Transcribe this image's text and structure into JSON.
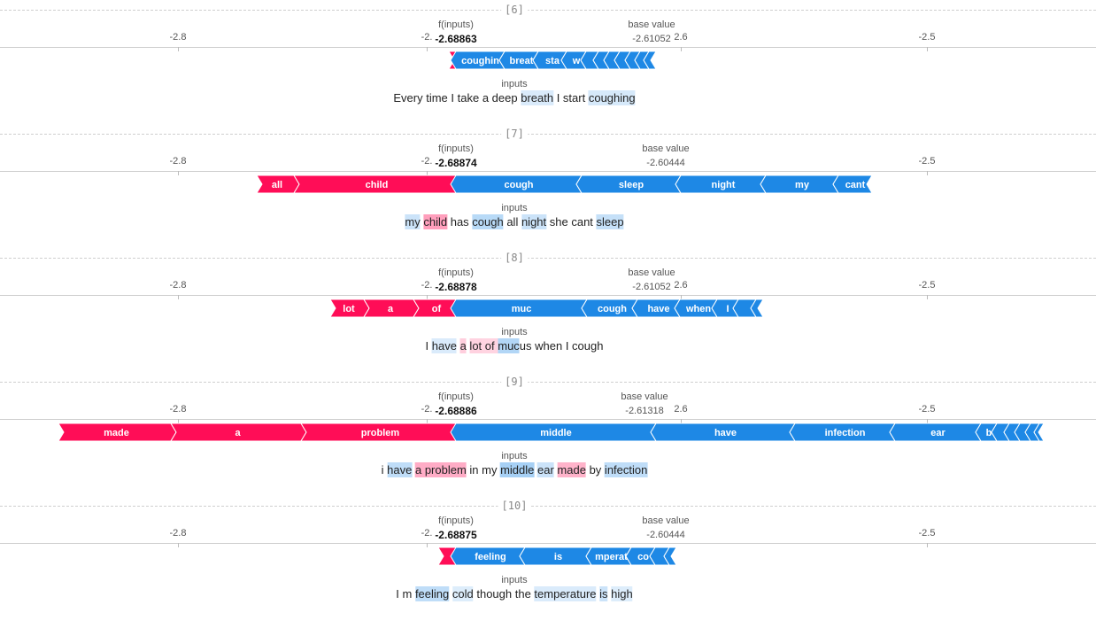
{
  "colors": {
    "positive": "#ff0d57",
    "negative": "#1e88e5",
    "axis": "#cccccc"
  },
  "common": {
    "fx_label": "f(inputs)",
    "base_label": "base value",
    "inputs_label": "inputs"
  },
  "ticks": [
    {
      "label": "-2.8"
    },
    {
      "label": "-2."
    },
    {
      "label": "2.6"
    },
    {
      "label": "-2.5"
    }
  ],
  "sections": [
    {
      "index": "[6]",
      "fx": "-2.68863",
      "base": "-2.61052",
      "show_26": true,
      "pos_segments": [
        {
          "label": "",
          "w": 8
        }
      ],
      "neg_segments": [
        {
          "label": "coughin",
          "w": 55
        },
        {
          "label": "breat",
          "w": 38
        },
        {
          "label": "sta",
          "w": 32
        },
        {
          "label": "w",
          "w": 22
        },
        {
          "label": "",
          "w": 14
        },
        {
          "label": "",
          "w": 12
        },
        {
          "label": "",
          "w": 12
        },
        {
          "label": "",
          "w": 12
        },
        {
          "label": "",
          "w": 11
        },
        {
          "label": "",
          "w": 10
        },
        {
          "label": "",
          "w": 8
        }
      ],
      "tokens": [
        {
          "t": "Every ",
          "s": 0
        },
        {
          "t": "time ",
          "s": 0
        },
        {
          "t": "I ",
          "s": 0
        },
        {
          "t": "take ",
          "s": 0
        },
        {
          "t": "a ",
          "s": 0
        },
        {
          "t": "deep ",
          "s": 0
        },
        {
          "t": "breath",
          "s": -0.08
        },
        {
          "t": " I ",
          "s": 0
        },
        {
          "t": "start ",
          "s": 0
        },
        {
          "t": "coughing",
          "s": -0.12
        }
      ]
    },
    {
      "index": "[7]",
      "fx": "-2.68874",
      "base": "-2.60444",
      "show_26": false,
      "pos_segments": [
        {
          "label": "all",
          "w": 42
        },
        {
          "label": "child",
          "w": 183
        }
      ],
      "neg_segments": [
        {
          "label": "cough",
          "w": 142
        },
        {
          "label": "sleep",
          "w": 112
        },
        {
          "label": "night",
          "w": 96
        },
        {
          "label": "my",
          "w": 82
        },
        {
          "label": "cant",
          "w": 38
        }
      ],
      "tokens": [
        {
          "t": "my",
          "s": -0.2
        },
        {
          "t": " ",
          "s": 0
        },
        {
          "t": "child",
          "s": 0.5
        },
        {
          "t": " has ",
          "s": 0
        },
        {
          "t": "cough",
          "s": -0.35
        },
        {
          "t": " all ",
          "s": 0
        },
        {
          "t": "night",
          "s": -0.2
        },
        {
          "t": " she cant ",
          "s": 0
        },
        {
          "t": "sleep",
          "s": -0.25
        }
      ]
    },
    {
      "index": "[8]",
      "fx": "-2.68878",
      "base": "-2.61052",
      "show_26": true,
      "pos_segments": [
        {
          "label": "lot",
          "w": 38
        },
        {
          "label": "a",
          "w": 56
        },
        {
          "label": "of",
          "w": 48
        }
      ],
      "neg_segments": [
        {
          "label": "muc",
          "w": 148
        },
        {
          "label": "cough",
          "w": 57
        },
        {
          "label": "have",
          "w": 48
        },
        {
          "label": "when",
          "w": 42
        },
        {
          "label": "I",
          "w": 24
        },
        {
          "label": "",
          "w": 20
        },
        {
          "label": "",
          "w": 8
        }
      ],
      "tokens": [
        {
          "t": "I ",
          "s": 0
        },
        {
          "t": "have",
          "s": -0.08
        },
        {
          "t": " ",
          "s": 0
        },
        {
          "t": "a",
          "s": 0.15
        },
        {
          "t": " ",
          "s": 0
        },
        {
          "t": "lot",
          "s": 0.12
        },
        {
          "t": " of ",
          "s": 0.1
        },
        {
          "t": "muc",
          "s": -0.4
        },
        {
          "t": "us when I cough",
          "s": 0
        }
      ]
    },
    {
      "index": "[9]",
      "fx": "-2.68886",
      "base": "-2.61318",
      "show_26": true,
      "pos_segments": [
        {
          "label": "made",
          "w": 127
        },
        {
          "label": "a",
          "w": 147
        },
        {
          "label": "problem",
          "w": 175
        }
      ],
      "neg_segments": [
        {
          "label": "middle",
          "w": 226
        },
        {
          "label": "have",
          "w": 157
        },
        {
          "label": "infection",
          "w": 113
        },
        {
          "label": "ear",
          "w": 97
        },
        {
          "label": "b",
          "w": 18
        },
        {
          "label": "",
          "w": 14
        },
        {
          "label": "",
          "w": 12
        },
        {
          "label": "",
          "w": 12
        },
        {
          "label": "",
          "w": 10
        },
        {
          "label": "",
          "w": 5
        }
      ],
      "tokens": [
        {
          "t": "i ",
          "s": 0
        },
        {
          "t": "have",
          "s": -0.3
        },
        {
          "t": " ",
          "s": 0
        },
        {
          "t": "a problem",
          "s": 0.4
        },
        {
          "t": " in my ",
          "s": 0
        },
        {
          "t": "middle",
          "s": -0.5
        },
        {
          "t": " ",
          "s": 0
        },
        {
          "t": "ear",
          "s": -0.2
        },
        {
          "t": " ",
          "s": 0
        },
        {
          "t": "made",
          "s": 0.35
        },
        {
          "t": " by ",
          "s": 0
        },
        {
          "t": "infection",
          "s": -0.3
        }
      ]
    },
    {
      "index": "[10]",
      "fx": "-2.68875",
      "base": "-2.60444",
      "show_26": false,
      "pos_segments": [
        {
          "label": "",
          "w": 20
        }
      ],
      "neg_segments": [
        {
          "label": "feeling",
          "w": 78
        },
        {
          "label": "is",
          "w": 75
        },
        {
          "label": "mperat",
          "w": 45
        },
        {
          "label": "co",
          "w": 27
        },
        {
          "label": "",
          "w": 16
        },
        {
          "label": "",
          "w": 8
        }
      ],
      "tokens": [
        {
          "t": "I m ",
          "s": 0
        },
        {
          "t": "feeling",
          "s": -0.3
        },
        {
          "t": " ",
          "s": 0
        },
        {
          "t": "cold",
          "s": -0.05
        },
        {
          "t": " though the ",
          "s": 0
        },
        {
          "t": "temperature",
          "s": -0.08
        },
        {
          "t": " ",
          "s": 0
        },
        {
          "t": "is",
          "s": -0.2
        },
        {
          "t": " ",
          "s": 0
        },
        {
          "t": "high",
          "s": -0.05
        }
      ]
    }
  ]
}
